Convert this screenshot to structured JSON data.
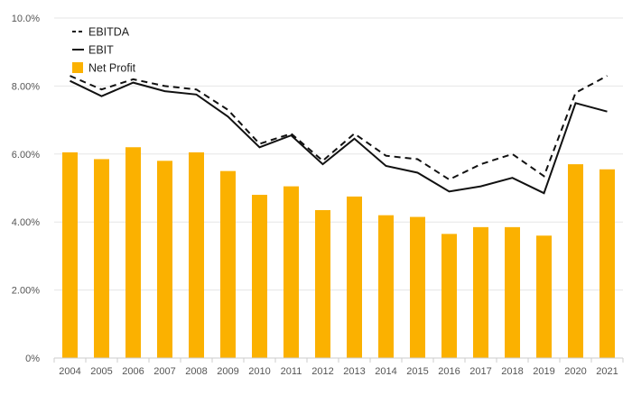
{
  "chart_data": {
    "type": "bar",
    "categories": [
      "2004",
      "2005",
      "2006",
      "2007",
      "2008",
      "2009",
      "2010",
      "2011",
      "2012",
      "2013",
      "2014",
      "2015",
      "2016",
      "2017",
      "2018",
      "2019",
      "2020",
      "2021"
    ],
    "ylim": [
      0,
      10
    ],
    "y_ticks": [
      "0%",
      "2.00%",
      "4.00%",
      "6.00%",
      "8.00%",
      "10.0%"
    ],
    "y_tick_values": [
      0,
      2,
      4,
      6,
      8,
      10
    ],
    "grid": true,
    "legend_position": "top-left",
    "series": [
      {
        "name": "EBITDA",
        "type": "line",
        "style": "dashed",
        "values": [
          8.3,
          7.9,
          8.2,
          8.0,
          7.9,
          7.3,
          6.3,
          6.6,
          5.8,
          6.6,
          5.95,
          5.85,
          5.25,
          5.7,
          6.0,
          5.35,
          7.8,
          8.3
        ]
      },
      {
        "name": "EBIT",
        "type": "line",
        "style": "solid",
        "values": [
          8.15,
          7.7,
          8.1,
          7.85,
          7.75,
          7.1,
          6.2,
          6.55,
          5.7,
          6.45,
          5.65,
          5.45,
          4.9,
          5.05,
          5.3,
          4.85,
          7.5,
          7.25
        ]
      },
      {
        "name": "Net Profit",
        "type": "bar",
        "values": [
          6.05,
          5.85,
          6.2,
          5.8,
          6.05,
          5.5,
          4.8,
          5.05,
          4.35,
          4.75,
          4.2,
          4.15,
          3.65,
          3.85,
          3.85,
          3.6,
          5.7,
          5.55
        ]
      }
    ],
    "colors": {
      "bar": "#fbb100",
      "ebitda": "#111111",
      "ebit": "#111111",
      "grid": "#e6e6e6",
      "axis": "#cccccc"
    }
  }
}
